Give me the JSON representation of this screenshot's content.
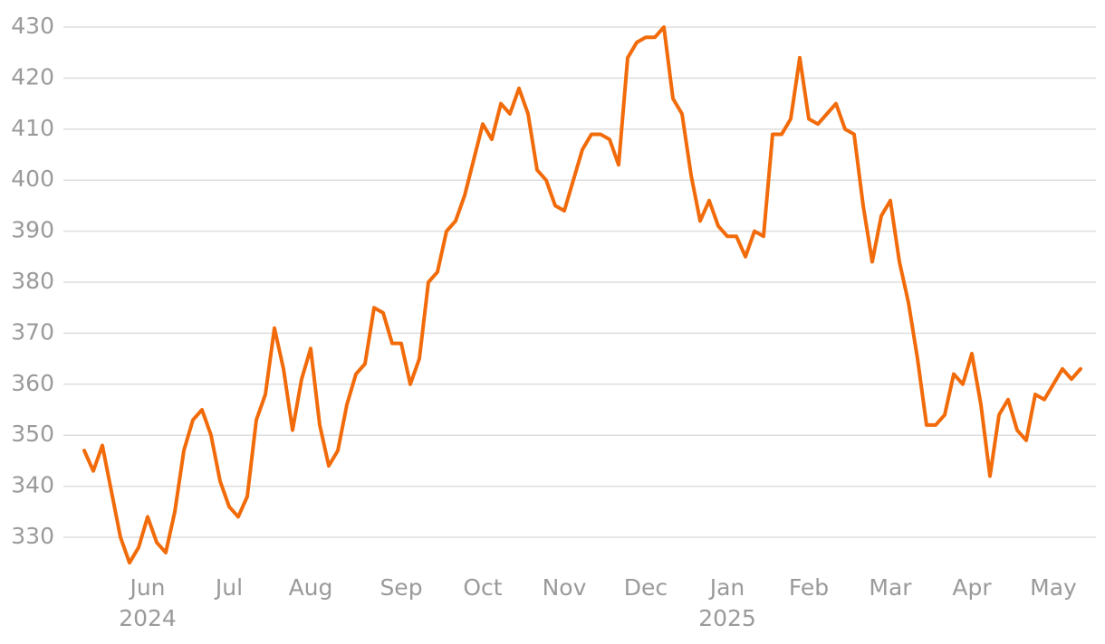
{
  "chart_data": {
    "type": "line",
    "color": "#f26b0a",
    "grid": true,
    "categories": [
      null,
      null,
      null,
      null,
      null,
      null,
      null,
      "Jun",
      null,
      null,
      null,
      null,
      null,
      null,
      null,
      null,
      "Jul",
      null,
      null,
      null,
      null,
      null,
      null,
      null,
      null,
      "Aug",
      null,
      null,
      null,
      null,
      null,
      null,
      null,
      null,
      null,
      "Sep",
      null,
      null,
      null,
      null,
      null,
      null,
      null,
      null,
      "Oct",
      null,
      null,
      null,
      null,
      null,
      null,
      null,
      null,
      "Nov",
      null,
      null,
      null,
      null,
      null,
      null,
      null,
      null,
      "Dec",
      null,
      null,
      null,
      null,
      null,
      null,
      null,
      null,
      "Jan",
      null,
      null,
      null,
      null,
      null,
      null,
      null,
      null,
      "Feb",
      null,
      null,
      null,
      null,
      null,
      null,
      null,
      null,
      "Mar",
      null,
      null,
      null,
      null,
      null,
      null,
      null,
      null,
      "Apr",
      null,
      null,
      null,
      null,
      null,
      null,
      null,
      null,
      "May",
      null,
      null,
      null
    ],
    "category_years": [
      null,
      null,
      null,
      null,
      null,
      null,
      null,
      "2024",
      null,
      null,
      null,
      null,
      null,
      null,
      null,
      null,
      null,
      null,
      null,
      null,
      null,
      null,
      null,
      null,
      null,
      null,
      null,
      null,
      null,
      null,
      null,
      null,
      null,
      null,
      null,
      null,
      null,
      null,
      null,
      null,
      null,
      null,
      null,
      null,
      null,
      null,
      null,
      null,
      null,
      null,
      null,
      null,
      null,
      null,
      null,
      null,
      null,
      null,
      null,
      null,
      null,
      null,
      null,
      null,
      null,
      null,
      null,
      null,
      null,
      null,
      null,
      "2025",
      null,
      null,
      null,
      null,
      null,
      null,
      null,
      null,
      null,
      null,
      null,
      null,
      null,
      null,
      null,
      null,
      null,
      null,
      null,
      null,
      null,
      null,
      null,
      null,
      null,
      null,
      null,
      null,
      null,
      null,
      null,
      null,
      null,
      null,
      null,
      null,
      null,
      null,
      null
    ],
    "values": [
      347,
      343,
      348,
      339,
      330,
      325,
      328,
      334,
      329,
      327,
      335,
      347,
      353,
      355,
      350,
      341,
      336,
      334,
      338,
      353,
      358,
      371,
      363,
      351,
      361,
      367,
      352,
      344,
      347,
      356,
      362,
      364,
      375,
      374,
      368,
      368,
      360,
      365,
      380,
      382,
      390,
      392,
      397,
      404,
      411,
      408,
      415,
      413,
      418,
      413,
      402,
      400,
      395,
      394,
      400,
      406,
      409,
      409,
      408,
      403,
      424,
      427,
      428,
      428,
      430,
      416,
      413,
      401,
      392,
      396,
      391,
      389,
      389,
      385,
      390,
      389,
      409,
      409,
      412,
      424,
      412,
      411,
      413,
      415,
      410,
      409,
      395,
      384,
      393,
      396,
      384,
      376,
      365,
      352,
      352,
      354,
      362,
      360,
      366,
      356,
      342,
      354,
      357,
      351,
      349,
      358,
      357,
      360,
      363,
      361,
      363
    ],
    "ylim": [
      325,
      432
    ],
    "yticks": [
      330,
      340,
      350,
      360,
      370,
      380,
      390,
      400,
      410,
      420,
      430
    ]
  }
}
